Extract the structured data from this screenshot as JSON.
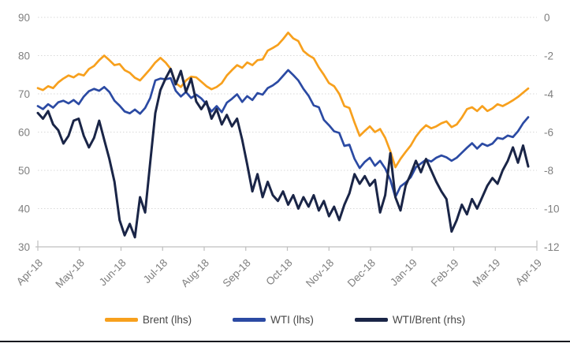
{
  "chart_data": {
    "type": "line",
    "title": "",
    "xlabel": "",
    "ylabel_left": "",
    "ylabel_right": "",
    "grid": "horizontal-dotted",
    "legend_position": "bottom",
    "x": {
      "tick_labels": [
        "Apr-18",
        "May-18",
        "Jun-18",
        "Jul-18",
        "Aug-18",
        "Sep-18",
        "Oct-18",
        "Nov-18",
        "Dec-18",
        "Jan-19",
        "Feb-19",
        "Mar-19",
        "Apr-19"
      ],
      "label_rotation_deg": -45
    },
    "y_left": {
      "min": 30,
      "max": 90,
      "ticks": [
        90,
        80,
        70,
        60,
        50,
        40,
        30
      ]
    },
    "y_right": {
      "min": -12,
      "max": 0,
      "ticks": [
        0,
        -2,
        -4,
        -6,
        -8,
        -10,
        -12
      ]
    },
    "series": [
      {
        "name": "Brent (lhs)",
        "axis": "left",
        "color": "#F7A01D",
        "values": [
          71.5,
          71.0,
          72.0,
          71.5,
          73.0,
          74.0,
          74.8,
          74.3,
          75.2,
          74.8,
          76.5,
          77.3,
          78.8,
          80.0,
          78.8,
          77.5,
          77.8,
          76.2,
          75.5,
          74.2,
          73.5,
          75.0,
          76.5,
          78.2,
          79.4,
          78.2,
          76.5,
          72.8,
          71.8,
          73.5,
          74.5,
          74.3,
          73.2,
          72.0,
          71.2,
          71.8,
          72.8,
          74.8,
          76.2,
          77.5,
          76.8,
          78.2,
          77.5,
          78.8,
          79.0,
          81.3,
          82.0,
          82.8,
          84.3,
          86.0,
          84.5,
          83.8,
          81.2,
          80.1,
          79.3,
          76.9,
          75.0,
          72.8,
          72.0,
          70.0,
          66.8,
          66.3,
          62.5,
          59.0,
          60.3,
          61.5,
          60.0,
          60.8,
          58.5,
          55.0,
          50.8,
          53.0,
          54.8,
          56.5,
          58.8,
          60.5,
          61.8,
          61.0,
          61.5,
          62.3,
          62.8,
          61.3,
          62.0,
          63.8,
          66.0,
          66.5,
          65.5,
          66.8,
          65.5,
          66.2,
          67.3,
          66.8,
          67.5,
          68.3,
          69.2,
          70.3,
          71.4
        ]
      },
      {
        "name": "WTI (lhs)",
        "axis": "left",
        "color": "#2B4AA3",
        "values": [
          66.8,
          66.0,
          67.3,
          66.4,
          67.8,
          68.2,
          67.5,
          68.4,
          67.3,
          69.3,
          70.7,
          71.3,
          70.8,
          71.8,
          70.5,
          68.2,
          66.9,
          65.4,
          64.9,
          65.9,
          64.8,
          66.3,
          68.9,
          73.5,
          74.0,
          73.8,
          74.1,
          70.8,
          69.3,
          70.5,
          68.9,
          69.8,
          68.8,
          67.3,
          65.4,
          66.8,
          65.2,
          67.7,
          68.7,
          69.9,
          67.9,
          69.4,
          68.4,
          70.2,
          69.8,
          71.5,
          72.2,
          73.2,
          74.7,
          76.2,
          74.9,
          73.5,
          71.3,
          69.5,
          67.0,
          66.5,
          63.2,
          61.8,
          60.2,
          59.8,
          56.4,
          56.7,
          53.0,
          50.6,
          52.2,
          53.3,
          51.2,
          52.5,
          50.5,
          47.5,
          43.0,
          45.8,
          46.8,
          48.2,
          50.8,
          51.8,
          52.8,
          52.3,
          53.3,
          53.9,
          53.4,
          52.5,
          53.3,
          54.6,
          55.9,
          57.1,
          55.7,
          57.0,
          56.4,
          57.0,
          58.5,
          58.2,
          59.1,
          58.7,
          60.2,
          62.3,
          63.9
        ]
      },
      {
        "name": "WTI/Brent (rhs)",
        "axis": "right",
        "color": "#1A2547",
        "values": [
          -5.0,
          -5.3,
          -4.9,
          -5.6,
          -5.9,
          -6.6,
          -6.2,
          -5.4,
          -5.3,
          -6.2,
          -6.8,
          -6.3,
          -5.4,
          -6.4,
          -7.4,
          -8.6,
          -10.6,
          -11.4,
          -10.8,
          -11.5,
          -9.4,
          -10.2,
          -7.6,
          -5.0,
          -3.8,
          -3.2,
          -2.7,
          -3.5,
          -2.8,
          -3.9,
          -3.2,
          -4.4,
          -4.8,
          -4.4,
          -5.3,
          -4.8,
          -5.6,
          -5.1,
          -5.7,
          -5.3,
          -6.4,
          -7.7,
          -9.1,
          -8.2,
          -9.4,
          -8.6,
          -9.3,
          -9.6,
          -9.1,
          -9.8,
          -9.3,
          -10.0,
          -9.4,
          -9.9,
          -9.3,
          -10.1,
          -9.6,
          -10.4,
          -9.9,
          -10.6,
          -9.8,
          -9.2,
          -8.2,
          -8.7,
          -8.3,
          -8.8,
          -8.5,
          -10.2,
          -9.3,
          -7.1,
          -9.4,
          -10.1,
          -8.8,
          -8.2,
          -7.5,
          -8.1,
          -7.4,
          -8.0,
          -8.6,
          -9.1,
          -9.5,
          -11.2,
          -10.6,
          -9.8,
          -10.3,
          -9.5,
          -10.0,
          -9.4,
          -8.8,
          -8.4,
          -8.7,
          -8.0,
          -7.5,
          -6.8,
          -7.6,
          -6.7,
          -7.8
        ]
      }
    ]
  },
  "colors": {
    "grid": "#D8D8D8",
    "axis_line": "#BFBFBF",
    "tick_label": "#7F7F7F",
    "legend_text": "#474747",
    "page_border": "#15171E",
    "background": "#FFFFFF"
  }
}
